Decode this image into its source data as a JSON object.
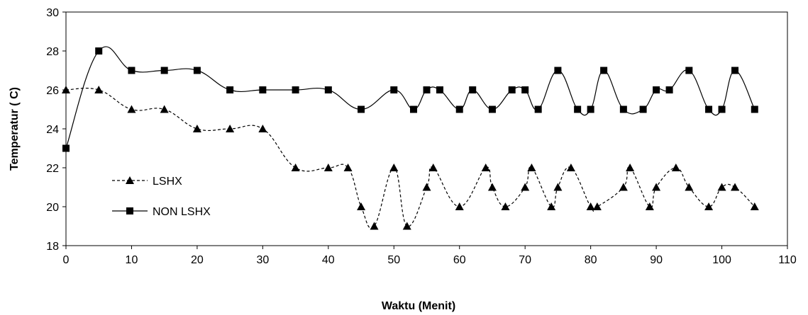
{
  "chart_data": {
    "type": "line",
    "title": "",
    "xlabel": "Waktu (Menit)",
    "ylabel": "Temperatur ( C)",
    "xlim": [
      0,
      110
    ],
    "ylim": [
      18,
      30
    ],
    "xticks": [
      0,
      10,
      20,
      30,
      40,
      50,
      60,
      70,
      80,
      90,
      100,
      110
    ],
    "yticks": [
      18,
      20,
      22,
      24,
      26,
      28,
      30
    ],
    "grid": false,
    "legend": "center-left",
    "series": [
      {
        "name": "LSHX",
        "marker": "triangle",
        "line": "dashed",
        "color": "#000000",
        "x": [
          0,
          5,
          10,
          15,
          20,
          25,
          30,
          35,
          40,
          43,
          45,
          47,
          50,
          52,
          55,
          56,
          60,
          64,
          65,
          67,
          70,
          71,
          74,
          75,
          77,
          80,
          81,
          85,
          86,
          89,
          90,
          93,
          95,
          98,
          100,
          102,
          105
        ],
        "y": [
          26,
          26,
          25,
          25,
          24,
          24,
          24,
          22,
          22,
          22,
          20,
          19,
          22,
          19,
          21,
          22,
          20,
          22,
          21,
          20,
          21,
          22,
          20,
          21,
          22,
          20,
          20,
          21,
          22,
          20,
          21,
          22,
          21,
          20,
          21,
          21,
          20
        ]
      },
      {
        "name": "NON LSHX",
        "marker": "square",
        "line": "solid",
        "color": "#000000",
        "x": [
          0,
          5,
          10,
          15,
          20,
          25,
          30,
          35,
          40,
          45,
          50,
          53,
          55,
          57,
          60,
          62,
          65,
          68,
          70,
          72,
          75,
          78,
          80,
          82,
          85,
          88,
          90,
          92,
          95,
          98,
          100,
          102,
          105
        ],
        "y": [
          23,
          28,
          27,
          27,
          27,
          26,
          26,
          26,
          26,
          25,
          26,
          25,
          26,
          26,
          25,
          26,
          25,
          26,
          26,
          25,
          27,
          25,
          25,
          27,
          25,
          25,
          26,
          26,
          27,
          25,
          25,
          27,
          25
        ]
      }
    ]
  }
}
